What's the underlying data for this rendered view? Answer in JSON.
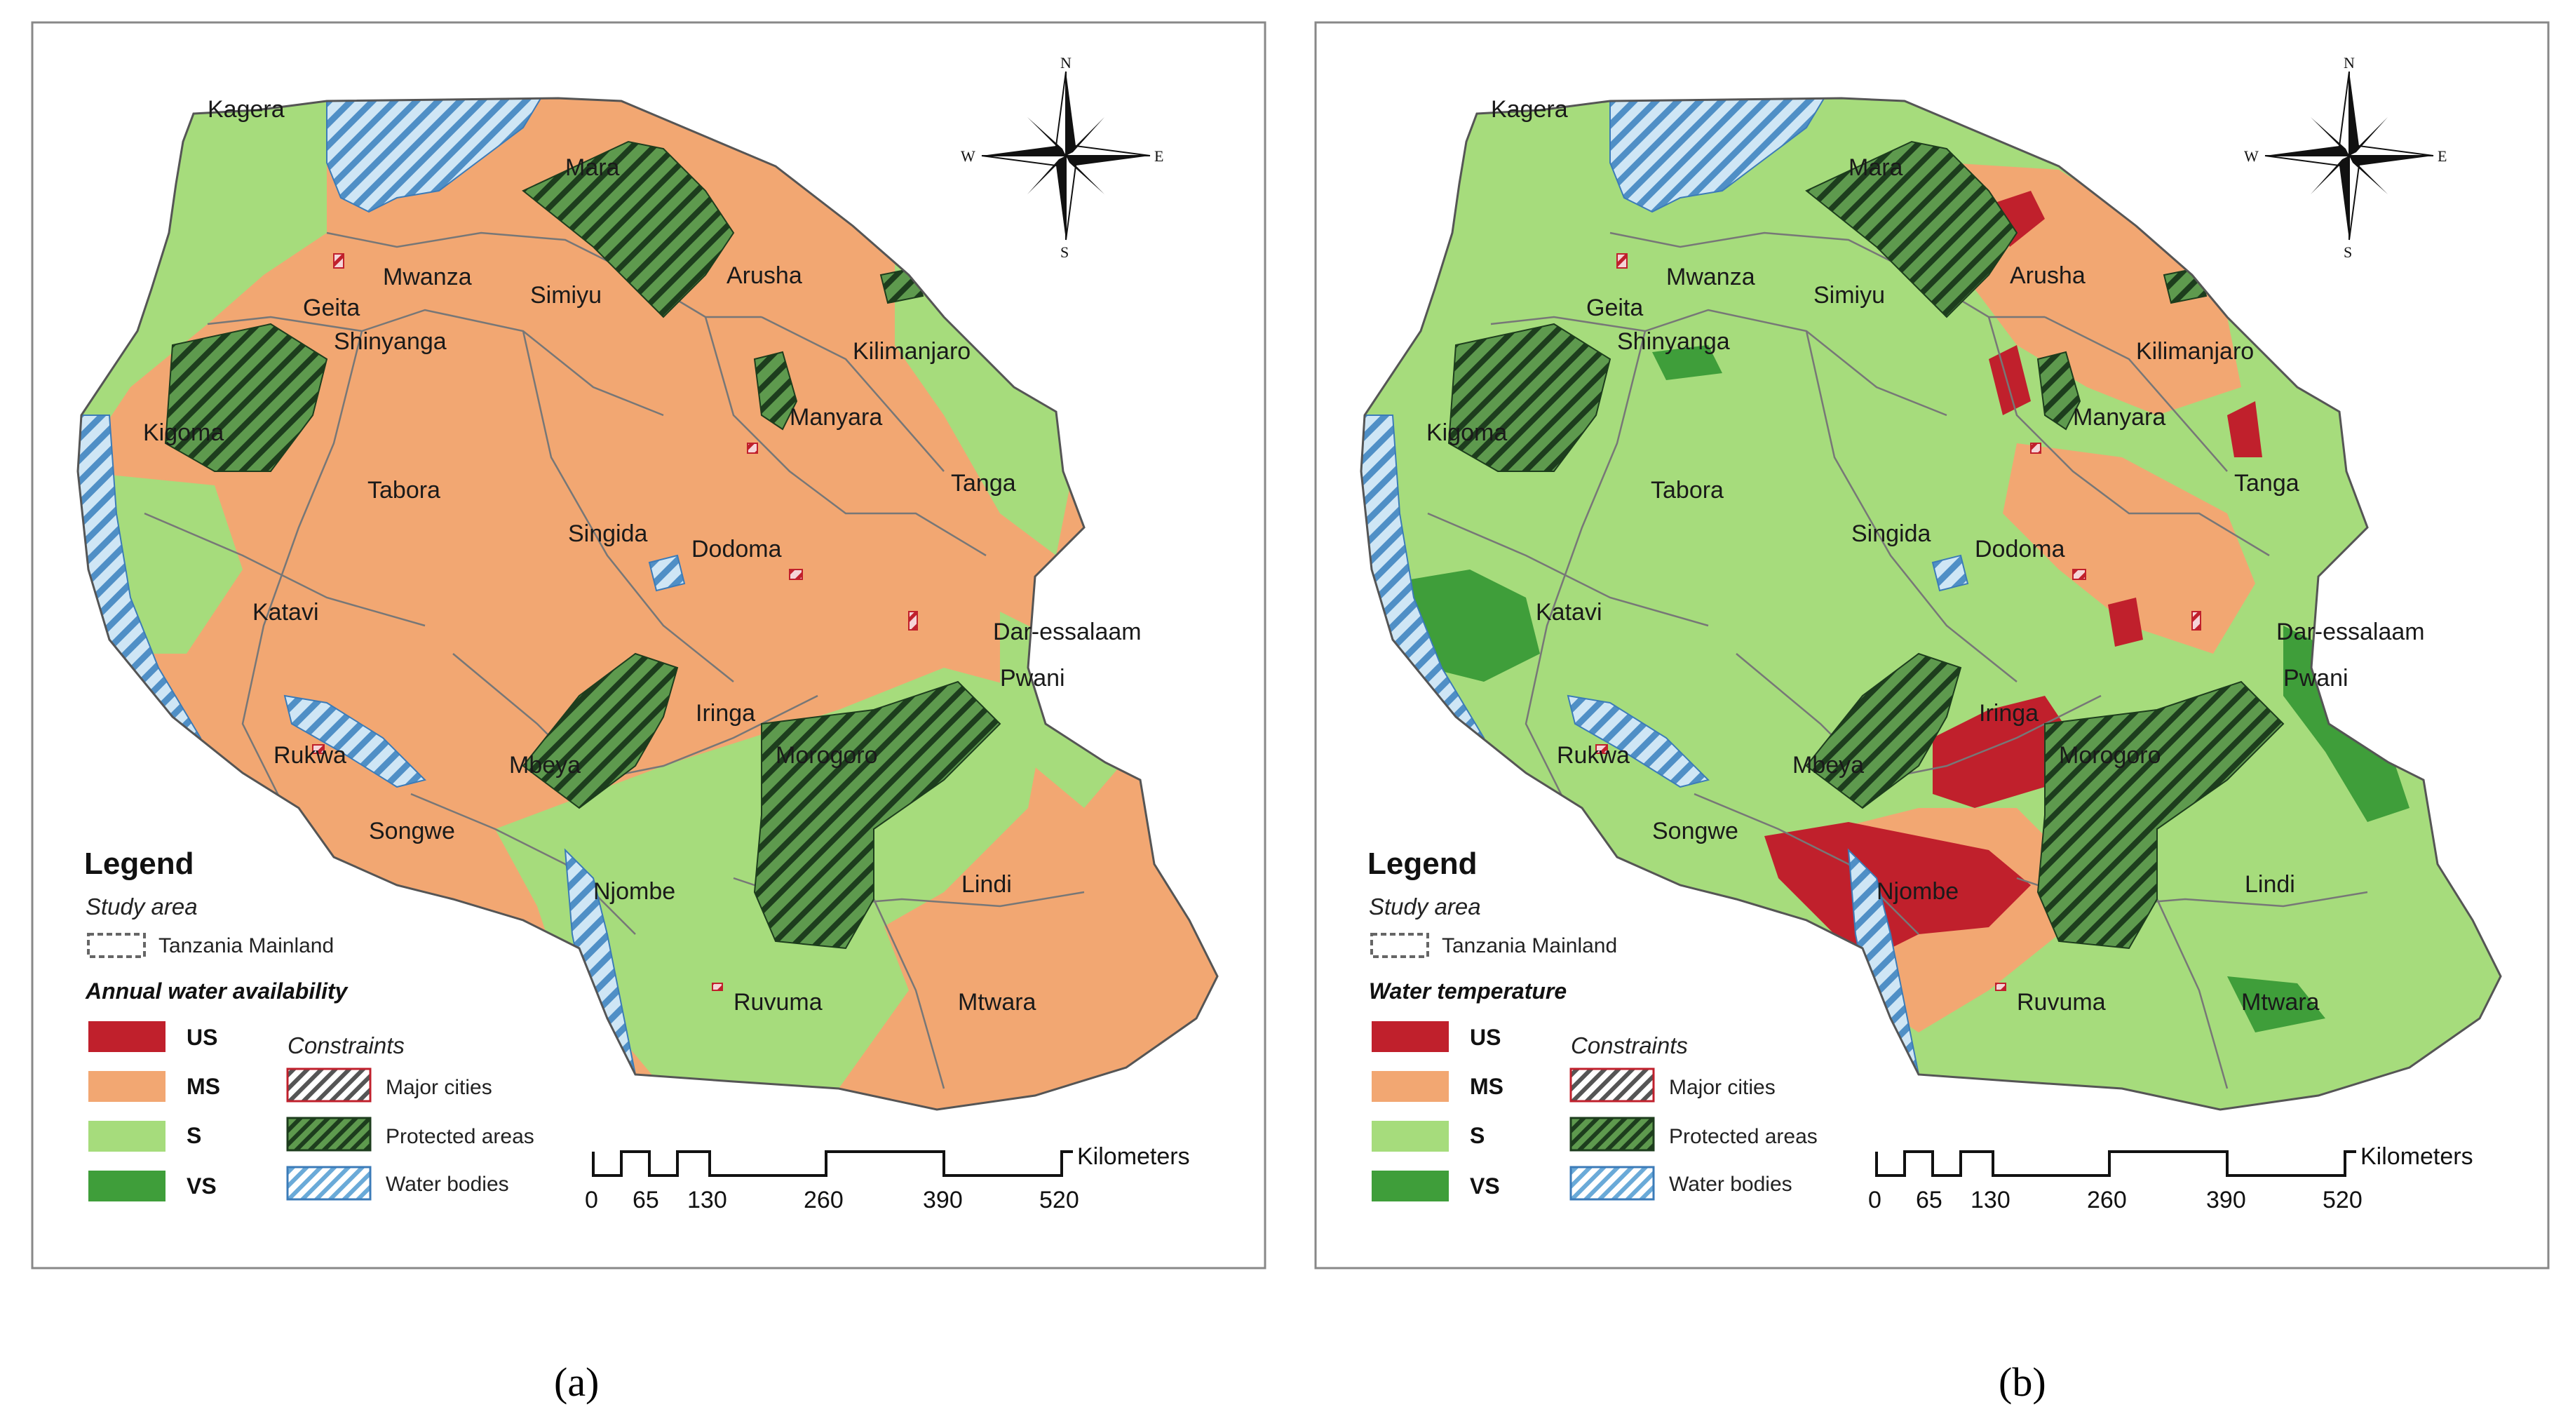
{
  "panels": [
    {
      "id": "a",
      "caption": "(a)",
      "legend": {
        "title": "Legend",
        "study_area_label": "Study area",
        "study_area_item": "Tanzania Mainland",
        "variable_title": "Annual water availability",
        "classes": [
          {
            "code": "US",
            "color": "#c0202c"
          },
          {
            "code": "MS",
            "color": "#f2a772"
          },
          {
            "code": "S",
            "color": "#a6dc7c"
          },
          {
            "code": "VS",
            "color": "#3f9e3a"
          }
        ],
        "constraints_title": "Constraints",
        "constraints": [
          {
            "label": "Major cities",
            "hatch": "#c0202c"
          },
          {
            "label": "Protected areas",
            "hatch": "#2a6a2a"
          },
          {
            "label": "Water bodies",
            "hatch": "#6aaad8"
          }
        ],
        "scale_unit": "Kilometers",
        "scale_ticks": [
          "0",
          "65",
          "130",
          "260",
          "390",
          "520"
        ]
      },
      "dominant_fill": "#f2a772",
      "secondary_fill": "#a6dc7c"
    },
    {
      "id": "b",
      "caption": "(b)",
      "legend": {
        "title": "Legend",
        "study_area_label": "Study area",
        "study_area_item": "Tanzania Mainland",
        "variable_title": "Water temperature",
        "classes": [
          {
            "code": "US",
            "color": "#c0202c"
          },
          {
            "code": "MS",
            "color": "#f2a772"
          },
          {
            "code": "S",
            "color": "#a6dc7c"
          },
          {
            "code": "VS",
            "color": "#3f9e3a"
          }
        ],
        "constraints_title": "Constraints",
        "constraints": [
          {
            "label": "Major cities",
            "hatch": "#c0202c"
          },
          {
            "label": "Protected areas",
            "hatch": "#2a6a2a"
          },
          {
            "label": "Water bodies",
            "hatch": "#6aaad8"
          }
        ],
        "scale_unit": "Kilometers",
        "scale_ticks": [
          "0",
          "65",
          "130",
          "260",
          "390",
          "520"
        ]
      },
      "dominant_fill": "#a6dc7c",
      "secondary_fill": "#f2a772"
    }
  ],
  "places": [
    "Kagera",
    "Mara",
    "Mwanza",
    "Simiyu",
    "Geita",
    "Arusha",
    "Shinyanga",
    "Kilimanjaro",
    "Kigoma",
    "Manyara",
    "Tabora",
    "Tanga",
    "Singida",
    "Dodoma",
    "Katavi",
    "Dar-essalaam",
    "Pwani",
    "Iringa",
    "Rukwa",
    "Mbeya",
    "Morogoro",
    "Songwe",
    "Njombe",
    "Lindi",
    "Ruvuma",
    "Mtwara"
  ],
  "compass": {
    "n": "N",
    "s": "S",
    "e": "E",
    "w": "W"
  }
}
